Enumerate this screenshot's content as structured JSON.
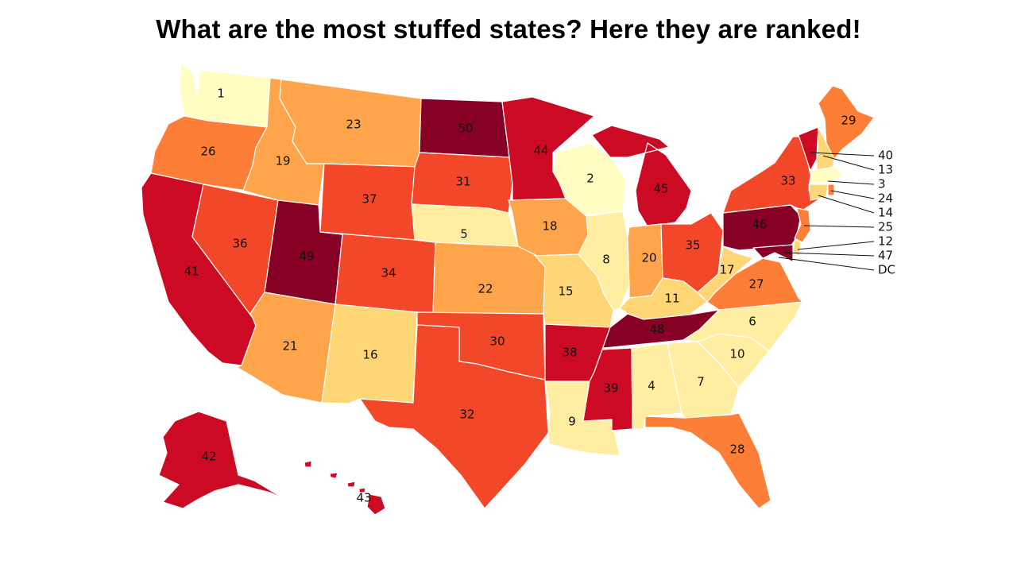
{
  "title": "What are the most stuffed states? Here they are ranked!",
  "colors": {
    "r1_3": "#fffdc2",
    "r4_10": "#ffeea1",
    "r11_17": "#fed676",
    "r18_23": "#fea44a",
    "r24_29": "#fd7e36",
    "r30_37": "#f3472a",
    "r38_45": "#cc0a24",
    "r46_50": "#870026"
  },
  "states": [
    {
      "name": "WA",
      "rank": "1"
    },
    {
      "name": "OR",
      "rank": "26"
    },
    {
      "name": "CA",
      "rank": "41"
    },
    {
      "name": "NV",
      "rank": "36"
    },
    {
      "name": "ID",
      "rank": "19"
    },
    {
      "name": "MT",
      "rank": "23"
    },
    {
      "name": "WY",
      "rank": "37"
    },
    {
      "name": "UT",
      "rank": "49"
    },
    {
      "name": "AZ",
      "rank": "21"
    },
    {
      "name": "CO",
      "rank": "34"
    },
    {
      "name": "NM",
      "rank": "16"
    },
    {
      "name": "ND",
      "rank": "50"
    },
    {
      "name": "SD",
      "rank": "31"
    },
    {
      "name": "NE",
      "rank": "5"
    },
    {
      "name": "KS",
      "rank": "22"
    },
    {
      "name": "OK",
      "rank": "30"
    },
    {
      "name": "TX",
      "rank": "32"
    },
    {
      "name": "MN",
      "rank": "44"
    },
    {
      "name": "IA",
      "rank": "18"
    },
    {
      "name": "MO",
      "rank": "15"
    },
    {
      "name": "AR",
      "rank": "38"
    },
    {
      "name": "LA",
      "rank": "9"
    },
    {
      "name": "WI",
      "rank": "2"
    },
    {
      "name": "IL",
      "rank": "8"
    },
    {
      "name": "MI",
      "rank": "45"
    },
    {
      "name": "IN",
      "rank": "20"
    },
    {
      "name": "OH",
      "rank": "35"
    },
    {
      "name": "KY",
      "rank": "11"
    },
    {
      "name": "TN",
      "rank": "48"
    },
    {
      "name": "MS",
      "rank": "39"
    },
    {
      "name": "AL",
      "rank": "4"
    },
    {
      "name": "GA",
      "rank": "7"
    },
    {
      "name": "FL",
      "rank": "28"
    },
    {
      "name": "SC",
      "rank": "10"
    },
    {
      "name": "NC",
      "rank": "6"
    },
    {
      "name": "VA",
      "rank": "27"
    },
    {
      "name": "WV",
      "rank": "17"
    },
    {
      "name": "PA",
      "rank": "46"
    },
    {
      "name": "NY",
      "rank": "33"
    },
    {
      "name": "ME",
      "rank": "29"
    },
    {
      "name": "AK",
      "rank": "42"
    },
    {
      "name": "HI",
      "rank": "43"
    }
  ],
  "callouts": [
    {
      "name": "VT",
      "rank": "40"
    },
    {
      "name": "NH",
      "rank": "13"
    },
    {
      "name": "MA",
      "rank": "3"
    },
    {
      "name": "RI",
      "rank": "24"
    },
    {
      "name": "CT",
      "rank": "14"
    },
    {
      "name": "NJ",
      "rank": "25"
    },
    {
      "name": "DE",
      "rank": "12"
    },
    {
      "name": "MD",
      "rank": "47"
    },
    {
      "name": "DC",
      "rank": "DC"
    }
  ]
}
